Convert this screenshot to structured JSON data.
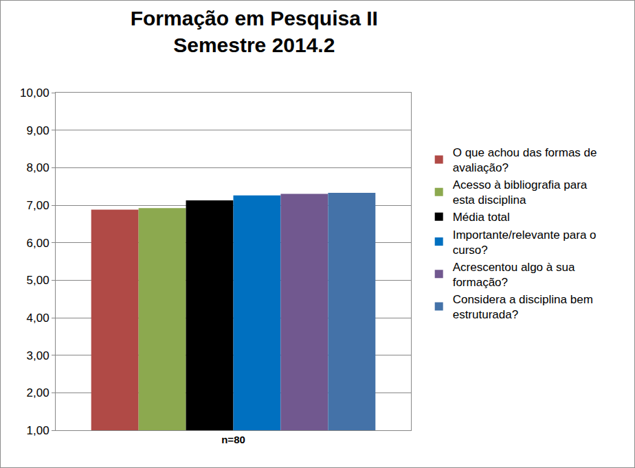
{
  "chart_data": {
    "type": "bar",
    "title": "Formação em Pesquisa II\nSemestre 2014.2",
    "categories": [
      "n=80"
    ],
    "series": [
      {
        "name": "O que achou das formas de avaliação?",
        "color": "#b04a46",
        "values": [
          6.88
        ]
      },
      {
        "name": "Acesso à bibliografia para esta disciplina",
        "color": "#8ca94f",
        "values": [
          6.92
        ]
      },
      {
        "name": "Média total",
        "color": "#000000",
        "values": [
          7.13
        ]
      },
      {
        "name": "Importante/relevante para o curso?",
        "color": "#0070c0",
        "values": [
          7.26
        ]
      },
      {
        "name": "Acrescentou algo à sua formação?",
        "color": "#71588f",
        "values": [
          7.3
        ]
      },
      {
        "name": "Considera a disciplina bem estruturada?",
        "color": "#4472a8",
        "values": [
          7.33
        ]
      }
    ],
    "ylim": [
      1,
      10
    ],
    "yticks": [
      {
        "value": 1,
        "label": "1,00"
      },
      {
        "value": 2,
        "label": "2,00"
      },
      {
        "value": 3,
        "label": "3,00"
      },
      {
        "value": 4,
        "label": "4,00"
      },
      {
        "value": 5,
        "label": "5,00"
      },
      {
        "value": 6,
        "label": "6,00"
      },
      {
        "value": 7,
        "label": "7,00"
      },
      {
        "value": 8,
        "label": "8,00"
      },
      {
        "value": 9,
        "label": "9,00"
      },
      {
        "value": 10,
        "label": "10,00"
      }
    ],
    "grid": true,
    "legend": "right"
  }
}
